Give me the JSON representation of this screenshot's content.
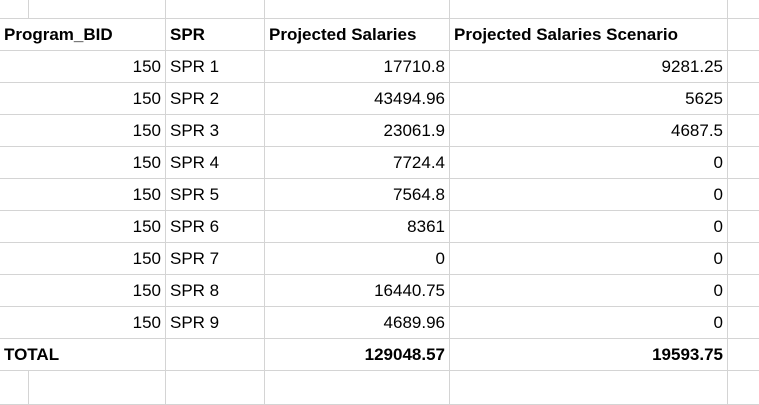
{
  "sheet": {
    "headers": [
      "Program_BID",
      "SPR",
      "Projected Salaries",
      "Projected Salaries Scenario"
    ],
    "rows": [
      {
        "bid": "150",
        "spr": "SPR 1",
        "projected": "17710.8",
        "scenario": "9281.25"
      },
      {
        "bid": "150",
        "spr": "SPR 2",
        "projected": "43494.96",
        "scenario": "5625"
      },
      {
        "bid": "150",
        "spr": "SPR 3",
        "projected": "23061.9",
        "scenario": "4687.5"
      },
      {
        "bid": "150",
        "spr": "SPR 4",
        "projected": "7724.4",
        "scenario": "0"
      },
      {
        "bid": "150",
        "spr": "SPR 5",
        "projected": "7564.8",
        "scenario": "0"
      },
      {
        "bid": "150",
        "spr": "SPR 6",
        "projected": "8361",
        "scenario": "0"
      },
      {
        "bid": "150",
        "spr": "SPR 7",
        "projected": "0",
        "scenario": "0"
      },
      {
        "bid": "150",
        "spr": "SPR 8",
        "projected": "16440.75",
        "scenario": "0"
      },
      {
        "bid": "150",
        "spr": "SPR 9",
        "projected": "4689.96",
        "scenario": "0"
      }
    ],
    "total": {
      "label": "TOTAL",
      "projected": "129048.57",
      "scenario": "19593.75"
    }
  }
}
